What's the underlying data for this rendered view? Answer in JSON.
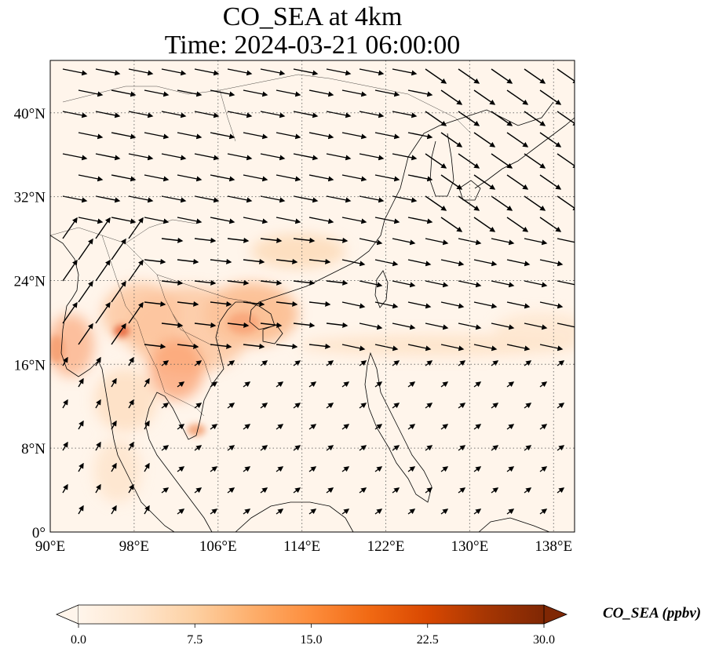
{
  "title": {
    "line1": "CO_SEA at 4km",
    "line2": "Time: 2024-03-21 06:00:00"
  },
  "map": {
    "lon_range": [
      90,
      140
    ],
    "lat_range": [
      0,
      45
    ],
    "lon_ticks": [
      {
        "value": 90,
        "label": "90°E"
      },
      {
        "value": 98,
        "label": "98°E"
      },
      {
        "value": 106,
        "label": "106°E"
      },
      {
        "value": 114,
        "label": "114°E"
      },
      {
        "value": 122,
        "label": "122°E"
      },
      {
        "value": 130,
        "label": "130°E"
      },
      {
        "value": 138,
        "label": "138°E"
      }
    ],
    "lat_ticks": [
      {
        "value": 0,
        "label": "0°"
      },
      {
        "value": 8,
        "label": "8°N"
      },
      {
        "value": 16,
        "label": "16°N"
      },
      {
        "value": 24,
        "label": "24°N"
      },
      {
        "value": 32,
        "label": "32°N"
      },
      {
        "value": 40,
        "label": "40°N"
      }
    ],
    "gridlines": true
  },
  "colorbar": {
    "label": "CO_SEA (ppbv)",
    "range": [
      0,
      30
    ],
    "ticks": [
      "0.0",
      "7.5",
      "15.0",
      "22.5",
      "30.0"
    ],
    "extend": "both",
    "colors": [
      "#fff5eb",
      "#fee6ce",
      "#fdd0a2",
      "#fdae6b",
      "#fd8d3c",
      "#f16913",
      "#d94801",
      "#a63603",
      "#7f2704"
    ]
  }
}
